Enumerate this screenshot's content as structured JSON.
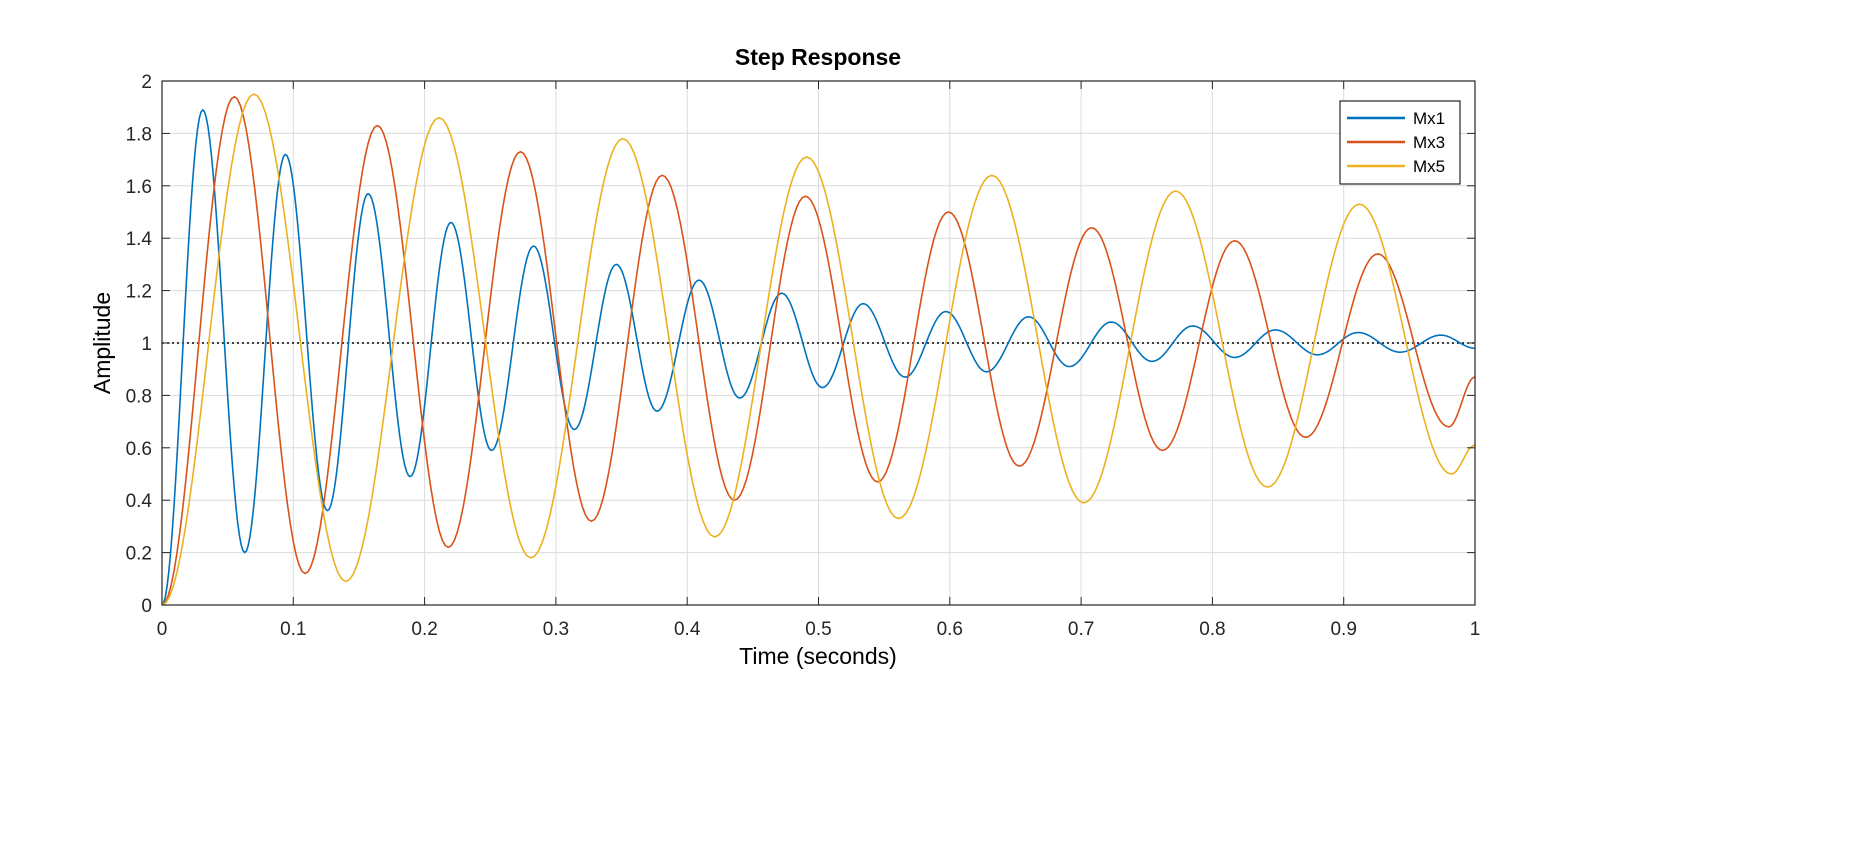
{
  "chart_data": {
    "type": "line",
    "title": "Step Response",
    "xlabel": "Time (seconds)",
    "ylabel": "Amplitude",
    "xlim": [
      0,
      1
    ],
    "ylim": [
      0,
      2
    ],
    "xticks": [
      "0",
      "0.1",
      "0.2",
      "0.3",
      "0.4",
      "0.5",
      "0.6",
      "0.7",
      "0.8",
      "0.9",
      "1"
    ],
    "yticks": [
      "0",
      "0.2",
      "0.4",
      "0.6",
      "0.8",
      "1",
      "1.2",
      "1.4",
      "1.6",
      "1.8",
      "2"
    ],
    "grid": true,
    "legend_position": "top-right",
    "reference_line": {
      "y": 1,
      "style": "dotted"
    },
    "series": [
      {
        "name": "Mx1",
        "color": "#0072BD",
        "points": [
          [
            0,
            0
          ],
          [
            0.031,
            1.89
          ],
          [
            0.063,
            0.2
          ],
          [
            0.094,
            1.72
          ],
          [
            0.126,
            0.36
          ],
          [
            0.157,
            1.57
          ],
          [
            0.189,
            0.49
          ],
          [
            0.22,
            1.46
          ],
          [
            0.251,
            0.59
          ],
          [
            0.283,
            1.37
          ],
          [
            0.314,
            0.67
          ],
          [
            0.346,
            1.3
          ],
          [
            0.377,
            0.74
          ],
          [
            0.409,
            1.24
          ],
          [
            0.44,
            0.79
          ],
          [
            0.472,
            1.19
          ],
          [
            0.503,
            0.83
          ],
          [
            0.534,
            1.15
          ],
          [
            0.566,
            0.87
          ],
          [
            0.597,
            1.12
          ],
          [
            0.628,
            0.89
          ],
          [
            0.66,
            1.1
          ],
          [
            0.691,
            0.91
          ],
          [
            0.723,
            1.08
          ],
          [
            0.754,
            0.93
          ],
          [
            0.785,
            1.065
          ],
          [
            0.817,
            0.945
          ],
          [
            0.848,
            1.05
          ],
          [
            0.88,
            0.955
          ],
          [
            0.911,
            1.04
          ],
          [
            0.943,
            0.965
          ],
          [
            0.974,
            1.03
          ],
          [
            1,
            0.98
          ]
        ]
      },
      {
        "name": "Mx3",
        "color": "#D95319",
        "points": [
          [
            0,
            0
          ],
          [
            0.055,
            1.94
          ],
          [
            0.109,
            0.12
          ],
          [
            0.164,
            1.83
          ],
          [
            0.218,
            0.22
          ],
          [
            0.273,
            1.73
          ],
          [
            0.327,
            0.32
          ],
          [
            0.381,
            1.64
          ],
          [
            0.436,
            0.4
          ],
          [
            0.49,
            1.56
          ],
          [
            0.545,
            0.47
          ],
          [
            0.599,
            1.5
          ],
          [
            0.653,
            0.53
          ],
          [
            0.708,
            1.44
          ],
          [
            0.762,
            0.59
          ],
          [
            0.817,
            1.39
          ],
          [
            0.871,
            0.64
          ],
          [
            0.926,
            1.34
          ],
          [
            0.98,
            0.68
          ],
          [
            1,
            0.87
          ]
        ]
      },
      {
        "name": "Mx5",
        "color": "#EDB120",
        "points": [
          [
            0,
            0
          ],
          [
            0.07,
            1.95
          ],
          [
            0.14,
            0.09
          ],
          [
            0.211,
            1.86
          ],
          [
            0.281,
            0.18
          ],
          [
            0.351,
            1.78
          ],
          [
            0.421,
            0.26
          ],
          [
            0.491,
            1.71
          ],
          [
            0.561,
            0.33
          ],
          [
            0.632,
            1.64
          ],
          [
            0.702,
            0.39
          ],
          [
            0.772,
            1.58
          ],
          [
            0.842,
            0.45
          ],
          [
            0.912,
            1.53
          ],
          [
            0.982,
            0.5
          ],
          [
            1,
            0.61
          ]
        ]
      }
    ]
  }
}
